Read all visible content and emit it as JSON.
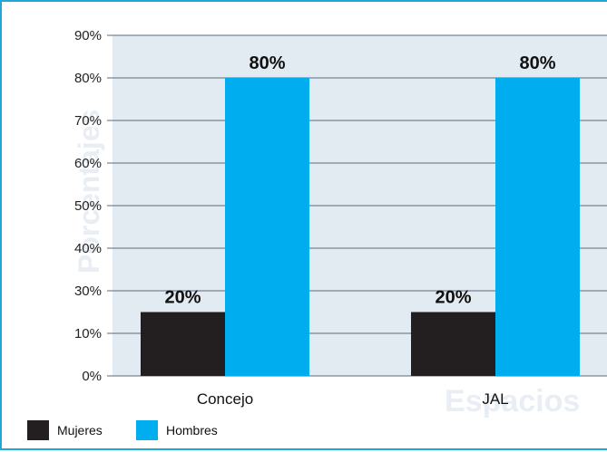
{
  "chart_data": {
    "type": "bar",
    "categories": [
      "Concejo",
      "JAL"
    ],
    "series": [
      {
        "name": "Mujeres",
        "values": [
          20,
          20
        ],
        "color": "#231f20"
      },
      {
        "name": "Hombres",
        "values": [
          80,
          80
        ],
        "color": "#00aeef"
      }
    ],
    "data_labels": [
      [
        "20%",
        "20%"
      ],
      [
        "80%",
        "80%"
      ]
    ],
    "yticks": [
      "0%",
      "10%",
      "30%",
      "40%",
      "50%",
      "60%",
      "70%",
      "80%",
      "90%"
    ],
    "ylim": [
      0,
      90
    ],
    "ylabel": "Porcentajes",
    "xlabel": "Espacios",
    "grid": true,
    "legend": "bottom-left",
    "plot_background": "#e2eaf2",
    "frame_color": "#1ea7d9"
  }
}
